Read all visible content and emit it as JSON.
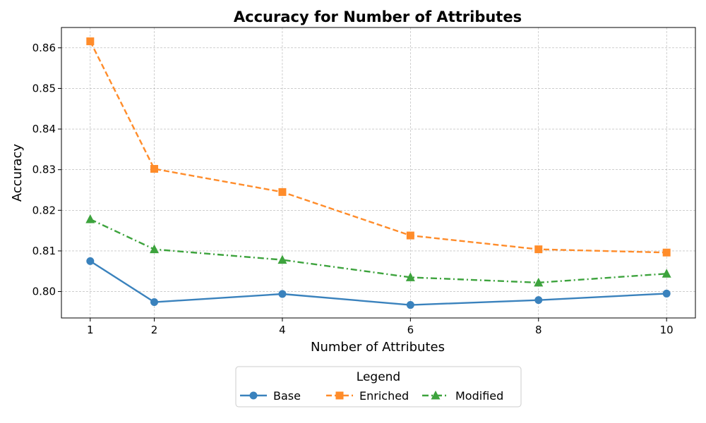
{
  "chart_data": {
    "type": "line",
    "title": "Accuracy for Number of Attributes",
    "xlabel": "Number of Attributes",
    "ylabel": "Accuracy",
    "x": [
      1,
      2,
      4,
      6,
      8,
      10
    ],
    "x_ticks": [
      1,
      2,
      4,
      6,
      8,
      10
    ],
    "y_ticks": [
      0.8,
      0.81,
      0.82,
      0.83,
      0.84,
      0.85,
      0.86
    ],
    "y_tick_labels": [
      "0.80",
      "0.81",
      "0.82",
      "0.83",
      "0.84",
      "0.85",
      "0.86"
    ],
    "xlim": [
      0.55,
      10.45
    ],
    "ylim": [
      0.7935,
      0.865
    ],
    "grid": true,
    "legend": {
      "title": "Legend",
      "placement": "bottom-center"
    },
    "series": [
      {
        "name": "Base",
        "color": "#3a82bd",
        "linestyle": "solid",
        "marker": "circle",
        "values": [
          0.8075,
          0.7974,
          0.7994,
          0.7967,
          0.7979,
          0.7995
        ]
      },
      {
        "name": "Enriched",
        "color": "#ff8c2a",
        "linestyle": "dashed",
        "marker": "square",
        "values": [
          0.8616,
          0.8302,
          0.8245,
          0.8138,
          0.8104,
          0.8096
        ]
      },
      {
        "name": "Modified",
        "color": "#3da33d",
        "linestyle": "dashdot",
        "marker": "triangle",
        "values": [
          0.8178,
          0.8104,
          0.8078,
          0.8035,
          0.8022,
          0.8044
        ]
      }
    ]
  }
}
